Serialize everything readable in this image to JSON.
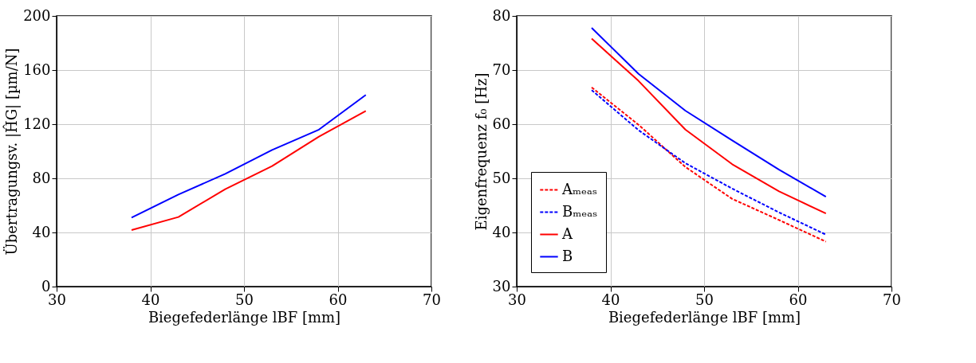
{
  "chart_data": [
    {
      "type": "line",
      "xlabel": "Biegefederlänge lBF [mm]",
      "ylabel": "Übertragungsv. |ĤG| [µm/N]",
      "x": [
        38,
        43,
        48,
        53,
        58,
        63
      ],
      "xlim": [
        30,
        70
      ],
      "xticks": [
        30,
        40,
        50,
        60,
        70
      ],
      "ylim": [
        0,
        200
      ],
      "yticks": [
        0,
        40,
        80,
        120,
        160,
        200
      ],
      "grid": true,
      "legend": false,
      "series": [
        {
          "color": "#ff0000",
          "values": [
            41.8,
            51.4,
            72,
            89,
            110.8,
            129.8
          ]
        },
        {
          "color": "#0000ff",
          "values": [
            51,
            68,
            83.3,
            101,
            116,
            141.6
          ]
        }
      ]
    },
    {
      "type": "line",
      "xlabel": "Biegefederlänge lBF [mm]",
      "ylabel": "Eigenfrequenz f₀ [Hz]",
      "x": [
        38,
        43,
        48,
        53,
        58,
        63
      ],
      "xlim": [
        30,
        70
      ],
      "xticks": [
        30,
        40,
        50,
        60,
        70
      ],
      "ylim": [
        30,
        80
      ],
      "yticks": [
        30,
        40,
        50,
        60,
        70,
        80
      ],
      "grid": true,
      "legend": "bottom left",
      "series": [
        {
          "name": "Aₘₑₐₛ",
          "color": "#ff0000",
          "line_style": "dashed",
          "values": [
            66.8,
            59.9,
            52.1,
            46.2,
            42.3,
            38.3
          ]
        },
        {
          "name": "Bₘₑₐₛ",
          "color": "#0000ff",
          "line_style": "dashed",
          "values": [
            66.3,
            58.9,
            52.8,
            48.1,
            43.7,
            39.6
          ]
        },
        {
          "name": "A",
          "color": "#ff0000",
          "line_style": "solid",
          "values": [
            75.8,
            68.0,
            59.0,
            52.6,
            47.6,
            43.5
          ]
        },
        {
          "name": "B",
          "color": "#0000ff",
          "line_style": "solid",
          "values": [
            77.8,
            69.3,
            62.5,
            57.0,
            51.6,
            46.6
          ]
        }
      ]
    }
  ]
}
